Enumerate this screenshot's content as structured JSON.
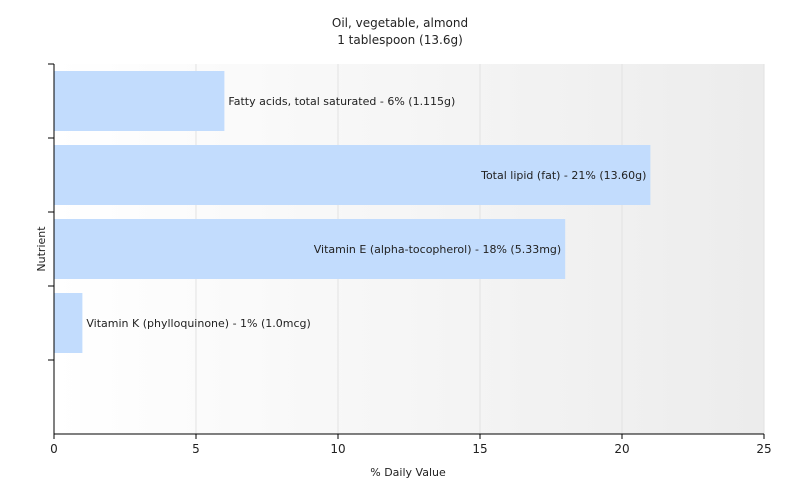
{
  "chart_data": {
    "type": "bar",
    "orientation": "horizontal",
    "title": "Oil, vegetable, almond",
    "subtitle": "1 tablespoon (13.6g)",
    "xlabel": "% Daily Value",
    "ylabel": "Nutrient",
    "xlim": [
      0,
      25
    ],
    "xticks": [
      0,
      5,
      10,
      15,
      20,
      25
    ],
    "grid": true,
    "bar_color": "#c2dcfd",
    "categories": [
      "Fatty acids, total saturated",
      "Total lipid (fat)",
      "Vitamin E (alpha-tocopherol)",
      "Vitamin K (phylloquinone)"
    ],
    "values": [
      6,
      21,
      18,
      1
    ],
    "labels": [
      "Fatty acids, total saturated - 6% (1.115g)",
      "Total lipid (fat) - 21% (13.60g)",
      "Vitamin E (alpha-tocopherol) - 18% (5.33mg)",
      "Vitamin K (phylloquinone) - 1% (1.0mcg)"
    ]
  }
}
